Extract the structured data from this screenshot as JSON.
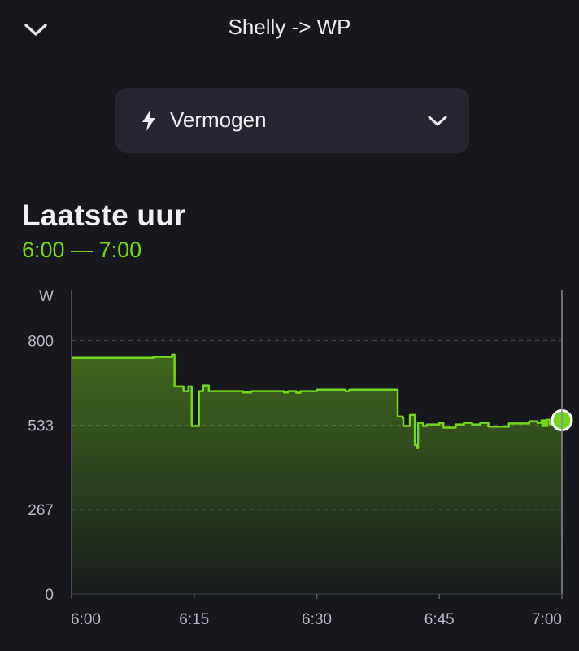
{
  "header": {
    "title": "Shelly -> WP",
    "back_icon": "chevron-down-icon"
  },
  "selector": {
    "icon": "lightning-bolt-icon",
    "label": "Vermogen",
    "chevron_icon": "chevron-down-icon"
  },
  "period": {
    "title": "Laatste uur",
    "range": "6:00 — 7:00"
  },
  "colors": {
    "accent": "#74d61d",
    "background": "#17181d",
    "card": "#25262e"
  },
  "chart_data": {
    "type": "area",
    "ylabel": "W",
    "ylim": [
      0,
      960
    ],
    "yticks": [
      0,
      267,
      533,
      800
    ],
    "ytick_labels": [
      "0",
      "267",
      "533",
      "800"
    ],
    "xlim": [
      0,
      60
    ],
    "xticks": [
      0,
      15,
      30,
      45,
      60
    ],
    "xtick_labels": [
      "6:00",
      "6:15",
      "6:30",
      "6:45",
      "7:00"
    ],
    "grid": true,
    "series": [
      {
        "color": "#74d61d",
        "points": [
          [
            0,
            745
          ],
          [
            5,
            745
          ],
          [
            8,
            745
          ],
          [
            10,
            748
          ],
          [
            12.3,
            755
          ],
          [
            12.5,
            755
          ],
          [
            12.6,
            655
          ],
          [
            13.6,
            655
          ],
          [
            13.7,
            640
          ],
          [
            14.2,
            640
          ],
          [
            14.3,
            655
          ],
          [
            14.6,
            655
          ],
          [
            14.7,
            530
          ],
          [
            15.5,
            530
          ],
          [
            15.6,
            640
          ],
          [
            16.0,
            640
          ],
          [
            16.1,
            658
          ],
          [
            16.7,
            658
          ],
          [
            16.8,
            640
          ],
          [
            20,
            640
          ],
          [
            21,
            636
          ],
          [
            22,
            640
          ],
          [
            25,
            640
          ],
          [
            26,
            636
          ],
          [
            26.5,
            640
          ],
          [
            27.5,
            635
          ],
          [
            28,
            640
          ],
          [
            30,
            645
          ],
          [
            33,
            645
          ],
          [
            33.5,
            640
          ],
          [
            34,
            645
          ],
          [
            37.5,
            645
          ],
          [
            39.8,
            645
          ],
          [
            39.9,
            560
          ],
          [
            40.5,
            555
          ],
          [
            40.6,
            530
          ],
          [
            41.3,
            530
          ],
          [
            41.4,
            565
          ],
          [
            41.8,
            565
          ],
          [
            42,
            470
          ],
          [
            42.3,
            460
          ],
          [
            42.4,
            540
          ],
          [
            42.8,
            540
          ],
          [
            43,
            530
          ],
          [
            43.5,
            535
          ],
          [
            45,
            540
          ],
          [
            45.5,
            525
          ],
          [
            46,
            525
          ],
          [
            47,
            535
          ],
          [
            48,
            540
          ],
          [
            49,
            535
          ],
          [
            50,
            540
          ],
          [
            51,
            528
          ],
          [
            53,
            528
          ],
          [
            53.5,
            538
          ],
          [
            56,
            545
          ],
          [
            57,
            540
          ],
          [
            57.5,
            548
          ],
          [
            57.6,
            530
          ],
          [
            57.8,
            548
          ],
          [
            58,
            530
          ],
          [
            58.2,
            550
          ],
          [
            58.5,
            535
          ],
          [
            58.8,
            548
          ],
          [
            59,
            538
          ],
          [
            59.4,
            550
          ],
          [
            59.8,
            545
          ],
          [
            60,
            548
          ]
        ]
      }
    ]
  }
}
